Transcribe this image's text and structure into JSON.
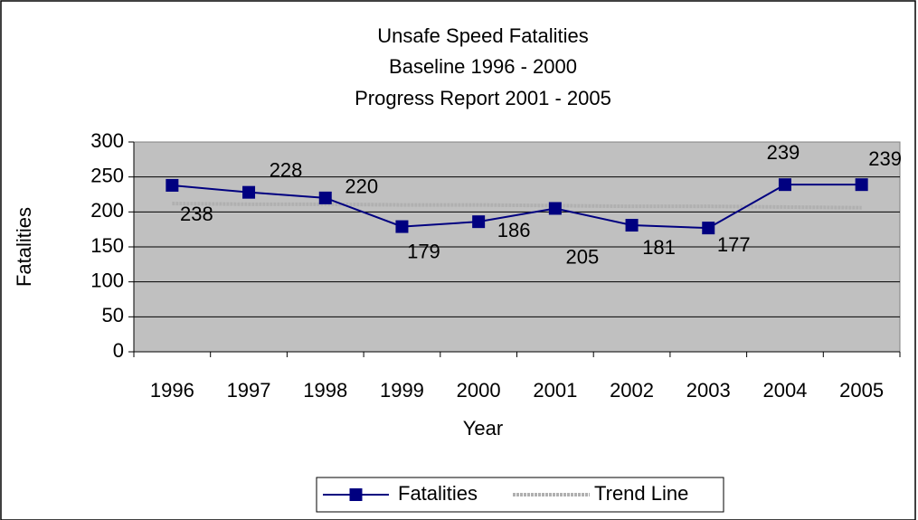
{
  "chart_data": {
    "type": "line",
    "title": [
      "Unsafe Speed Fatalities",
      "Baseline 1996 - 2000",
      "Progress Report 2001 - 2005"
    ],
    "x_label": "Year",
    "y_label": "Fatalities",
    "categories": [
      "1996",
      "1997",
      "1998",
      "1999",
      "2000",
      "2001",
      "2002",
      "2003",
      "2004",
      "2005"
    ],
    "series": [
      {
        "name": "Fatalities",
        "color": "#000080",
        "marker": "square",
        "values": [
          238,
          228,
          220,
          179,
          186,
          205,
          181,
          177,
          239,
          239
        ],
        "data_labels": true
      },
      {
        "name": "Trend Line",
        "color": "#b0b0b0",
        "marker": "none",
        "values": [
          212,
          211,
          211,
          210,
          210,
          209,
          208,
          208,
          207,
          206
        ]
      }
    ],
    "ylim": [
      0,
      300
    ],
    "yticks": [
      0,
      50,
      100,
      150,
      200,
      250,
      300
    ],
    "grid": true,
    "legend": "bottom"
  }
}
